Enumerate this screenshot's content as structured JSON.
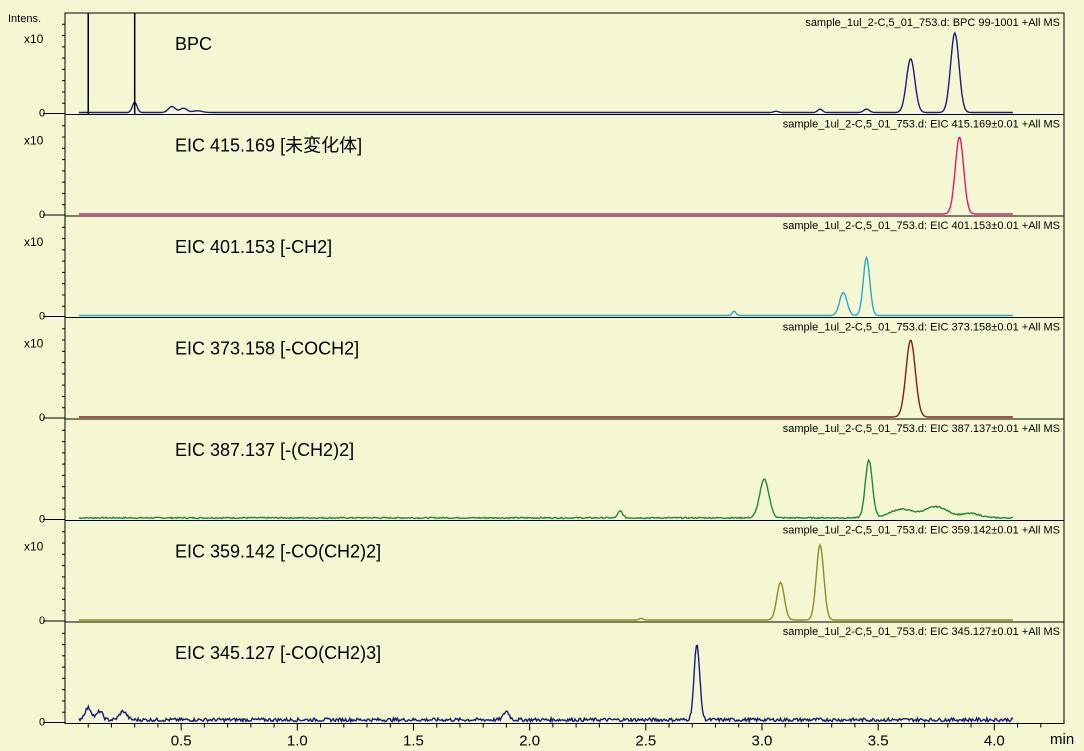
{
  "chart_data": {
    "type": "line",
    "y_axis_title": "Intens.",
    "x_unit": "min",
    "x_ticks": [
      0.5,
      1.0,
      1.5,
      2.0,
      2.5,
      3.0,
      3.5,
      4.0
    ],
    "x_tick_labels": [
      "0.5",
      "1.0",
      "1.5",
      "2.0",
      "2.5",
      "3.0",
      "3.5",
      "4.0"
    ],
    "xlim": [
      0,
      4.3
    ],
    "ylim": [
      0,
      1
    ],
    "background": "#f5f7d2",
    "panels": [
      {
        "label": "BPC",
        "info": "sample_1ul_2-C,5_01_753.d: BPC 99-1001 +All MS",
        "y_exp": "x10",
        "y_zero": "0",
        "color": "#1a1a80",
        "noise": 0.0,
        "markers": [
          0.1,
          0.3
        ],
        "peaks": [
          {
            "x": 0.3,
            "y": 0.12,
            "w": 0.01
          },
          {
            "x": 0.46,
            "y": 0.07,
            "w": 0.015
          },
          {
            "x": 0.51,
            "y": 0.05,
            "w": 0.015
          },
          {
            "x": 0.57,
            "y": 0.02,
            "w": 0.02
          },
          {
            "x": 3.06,
            "y": 0.015,
            "w": 0.01
          },
          {
            "x": 3.25,
            "y": 0.04,
            "w": 0.01
          },
          {
            "x": 3.45,
            "y": 0.04,
            "w": 0.012
          },
          {
            "x": 3.64,
            "y": 0.63,
            "w": 0.018
          },
          {
            "x": 3.83,
            "y": 0.93,
            "w": 0.018
          }
        ]
      },
      {
        "label": "EIC 415.169 [未変化体]",
        "info": "sample_1ul_2-C,5_01_753.d: EIC 415.169±0.01 +All MS",
        "y_exp": "x10",
        "y_zero": "0",
        "color": "#e6147d",
        "noise": 0.0,
        "markers": [],
        "peaks": [
          {
            "x": 3.85,
            "y": 0.9,
            "w": 0.018
          }
        ]
      },
      {
        "label": "EIC 401.153 [-CH2]",
        "info": "sample_1ul_2-C,5_01_753.d: EIC 401.153±0.01 +All MS",
        "y_exp": "x10",
        "y_zero": "0",
        "color": "#28a8d0",
        "noise": 0.0,
        "markers": [],
        "peaks": [
          {
            "x": 2.88,
            "y": 0.05,
            "w": 0.008
          },
          {
            "x": 3.35,
            "y": 0.27,
            "w": 0.016
          },
          {
            "x": 3.45,
            "y": 0.68,
            "w": 0.014
          }
        ]
      },
      {
        "label": "EIC 373.158 [-COCH2]",
        "info": "sample_1ul_2-C,5_01_753.d: EIC 373.158±0.01 +All MS",
        "y_exp": "x10",
        "y_zero": "0",
        "color": "#8b1a1a",
        "noise": 0.0,
        "markers": [],
        "peaks": [
          {
            "x": 3.64,
            "y": 0.9,
            "w": 0.02
          }
        ]
      },
      {
        "label": "EIC 387.137 [-(CH2)2]",
        "info": "sample_1ul_2-C,5_01_753.d: EIC 387.137±0.01 +All MS",
        "y_exp": "",
        "y_zero": "0",
        "color": "#1f8a32",
        "noise": 0.015,
        "markers": [],
        "peaks": [
          {
            "x": 2.39,
            "y": 0.08,
            "w": 0.01
          },
          {
            "x": 3.01,
            "y": 0.45,
            "w": 0.02
          },
          {
            "x": 3.46,
            "y": 0.68,
            "w": 0.015
          },
          {
            "x": 3.6,
            "y": 0.1,
            "w": 0.05
          },
          {
            "x": 3.75,
            "y": 0.13,
            "w": 0.05
          },
          {
            "x": 3.9,
            "y": 0.05,
            "w": 0.04
          }
        ]
      },
      {
        "label": "EIC 359.142 [-CO(CH2)2]",
        "info": "sample_1ul_2-C,5_01_753.d: EIC 359.142±0.01 +All MS",
        "y_exp": "x10",
        "y_zero": "0",
        "color": "#8b8f1c",
        "noise": 0.0,
        "markers": [],
        "peaks": [
          {
            "x": 2.48,
            "y": 0.02,
            "w": 0.008
          },
          {
            "x": 3.08,
            "y": 0.44,
            "w": 0.016
          },
          {
            "x": 3.25,
            "y": 0.88,
            "w": 0.016
          }
        ]
      },
      {
        "label": "EIC 345.127 [-CO(CH2)3]",
        "info": "sample_1ul_2-C,5_01_753.d: EIC 345.127±0.01 +All MS",
        "y_exp": "",
        "y_zero": "0",
        "color": "#1a1a80",
        "noise": 0.04,
        "markers": [],
        "peaks": [
          {
            "x": 0.1,
            "y": 0.14,
            "w": 0.015
          },
          {
            "x": 0.15,
            "y": 0.1,
            "w": 0.012
          },
          {
            "x": 0.25,
            "y": 0.1,
            "w": 0.015
          },
          {
            "x": 1.9,
            "y": 0.1,
            "w": 0.012
          },
          {
            "x": 2.72,
            "y": 0.88,
            "w": 0.012
          }
        ]
      }
    ]
  }
}
